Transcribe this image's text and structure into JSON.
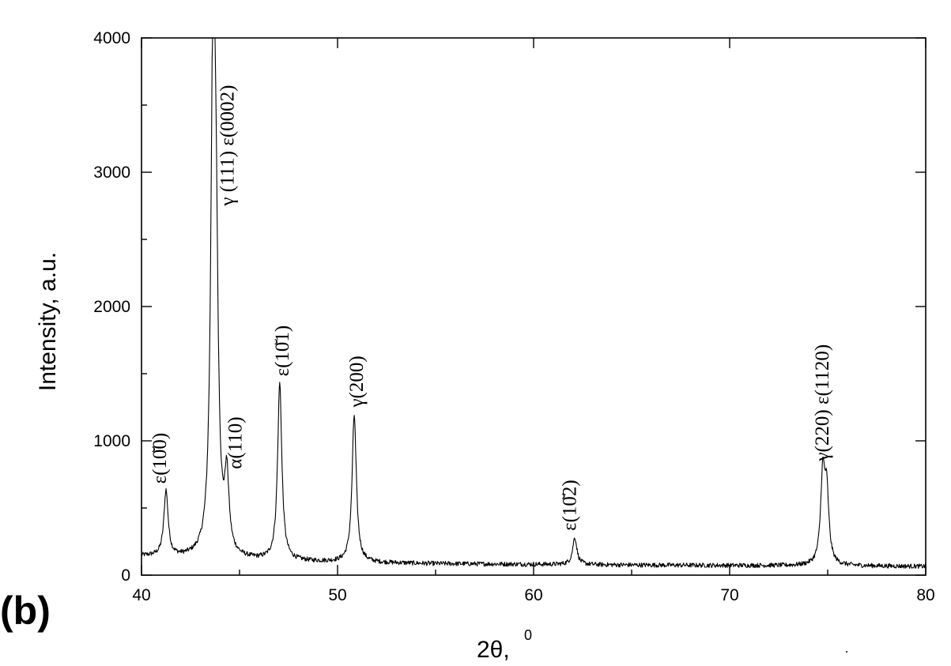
{
  "figure": {
    "panel_label": "(b)"
  },
  "chart_data": {
    "type": "line",
    "title": "",
    "xlabel": "2θ,",
    "xlabel_unit": "0",
    "ylabel": "Intensity, a.u.",
    "xlim": [
      40,
      80
    ],
    "ylim": [
      0,
      4000
    ],
    "x_ticks": [
      40,
      50,
      60,
      70,
      80
    ],
    "x_tick_labels": [
      "40",
      "50",
      "60",
      "70",
      "80"
    ],
    "y_ticks": [
      0,
      1000,
      2000,
      3000,
      4000
    ],
    "y_tick_labels": [
      "0",
      "1000",
      "2000",
      "3000",
      "4000"
    ],
    "x_minor_step": 5,
    "y_minor_step": 500,
    "grid": false,
    "legend": "none",
    "color": "#000000",
    "baseline": [
      {
        "x": 40.0,
        "y": 140
      },
      {
        "x": 45.0,
        "y": 110
      },
      {
        "x": 50.0,
        "y": 95
      },
      {
        "x": 55.0,
        "y": 85
      },
      {
        "x": 60.0,
        "y": 80
      },
      {
        "x": 65.0,
        "y": 75
      },
      {
        "x": 70.0,
        "y": 72
      },
      {
        "x": 75.0,
        "y": 70
      },
      {
        "x": 80.0,
        "y": 65
      }
    ],
    "peaks": [
      {
        "x": 41.25,
        "y": 620
      },
      {
        "x": 43.65,
        "y": 3780
      },
      {
        "x": 43.8,
        "y": 1900
      },
      {
        "x": 44.35,
        "y": 660
      },
      {
        "x": 47.05,
        "y": 1420
      },
      {
        "x": 50.85,
        "y": 1190
      },
      {
        "x": 62.1,
        "y": 280
      },
      {
        "x": 74.75,
        "y": 720
      },
      {
        "x": 74.95,
        "y": 570
      }
    ],
    "annotations": [
      {
        "text": "ε(10̆0)",
        "label": "epsilon-10-10",
        "x": 41.25,
        "y": 680
      },
      {
        "text": "γ (111)  ε(0002)",
        "label": "gamma-111-epsilon-0002",
        "x": 44.7,
        "y": 2750
      },
      {
        "text": "α(110)",
        "label": "alpha-110",
        "x": 45.1,
        "y": 790
      },
      {
        "text": "ε(10̆1)",
        "label": "epsilon-10-11",
        "x": 47.5,
        "y": 1480
      },
      {
        "text": "γ(200)",
        "label": "gamma-200",
        "x": 51.3,
        "y": 1250
      },
      {
        "text": "ε(10̆2)",
        "label": "epsilon-10-12",
        "x": 62.15,
        "y": 330
      },
      {
        "text": "γ(220)  ε(1120)",
        "label": "gamma-220-epsilon-1120",
        "x": 75.05,
        "y": 850
      }
    ]
  }
}
